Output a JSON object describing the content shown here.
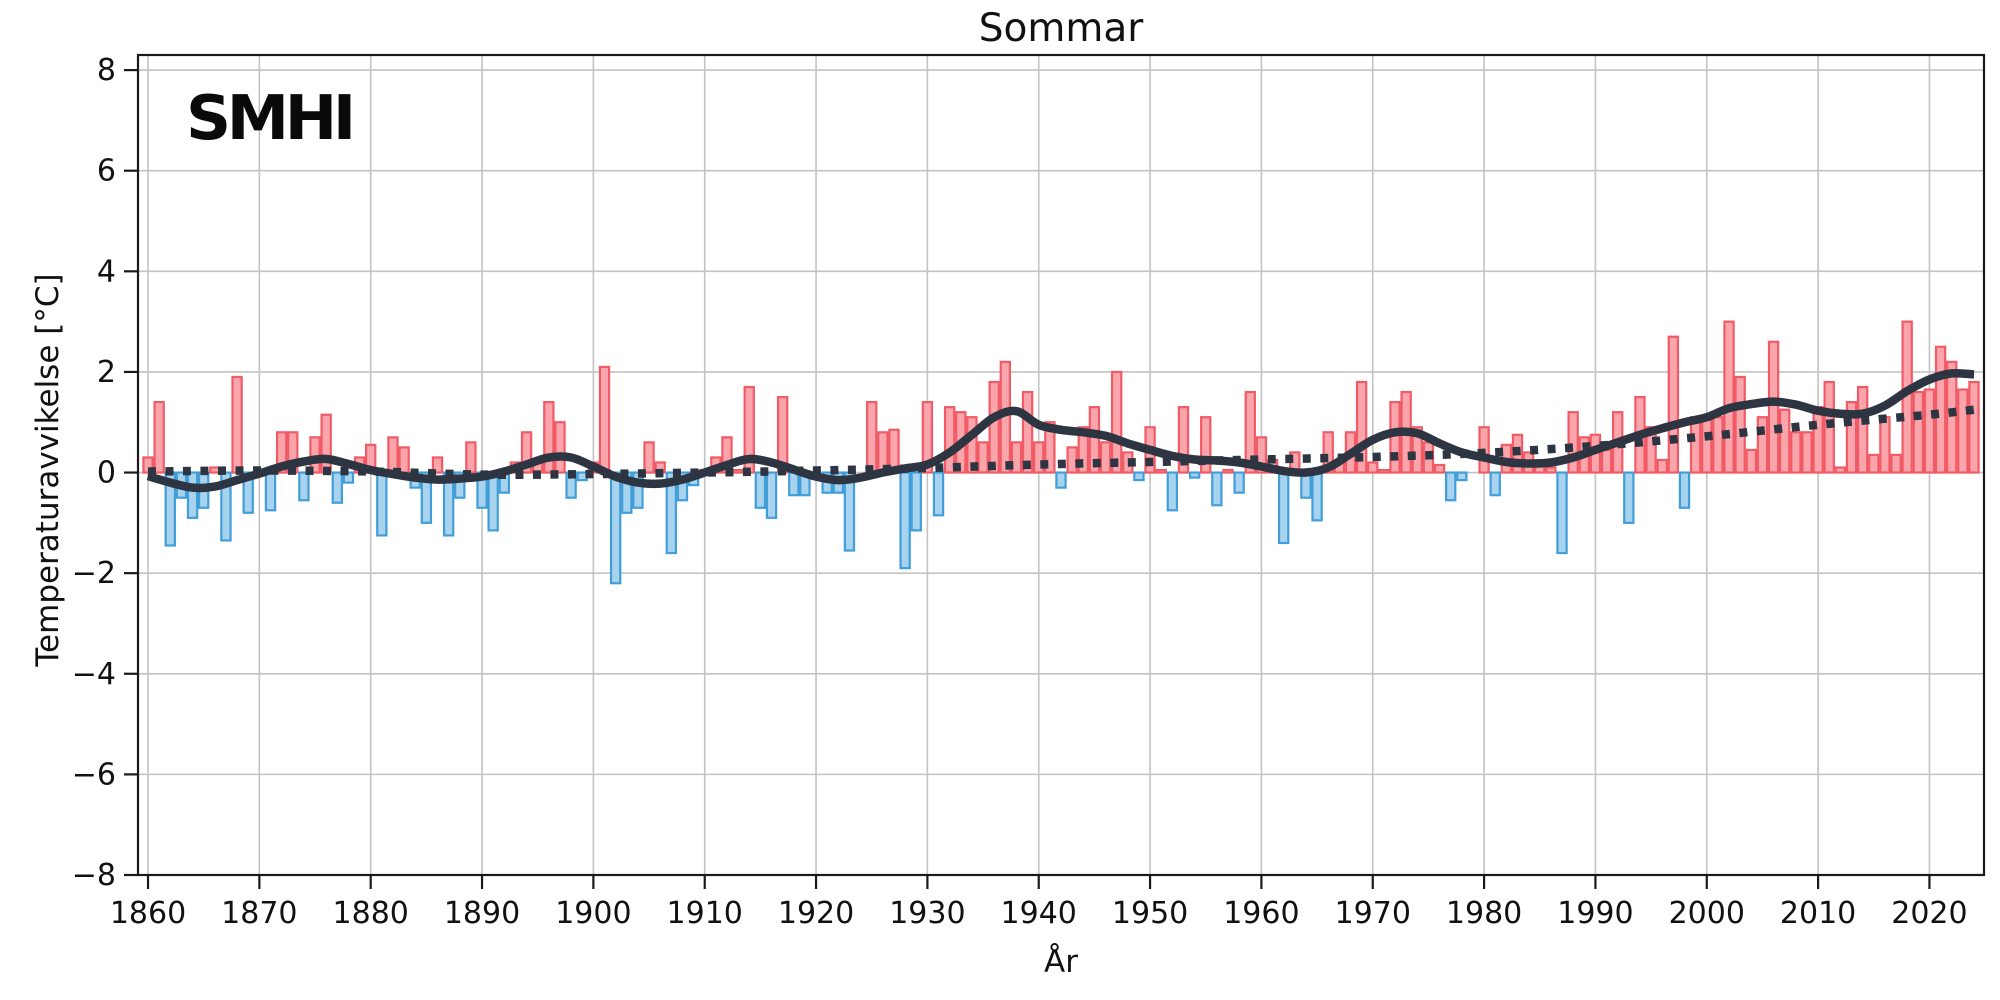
{
  "logo": "SMHI",
  "chart_data": {
    "type": "bar",
    "title": "Sommar",
    "xlabel": "År",
    "ylabel": "Temperaturavvikelse [°C]",
    "legend_position": "none",
    "grid": true,
    "xlim": [
      1859.1,
      2024.9
    ],
    "ylim": [
      -8,
      8.3
    ],
    "x_ticks": [
      1860,
      1870,
      1880,
      1890,
      1900,
      1910,
      1920,
      1930,
      1940,
      1950,
      1960,
      1970,
      1980,
      1990,
      2000,
      2010,
      2020
    ],
    "y_ticks": [
      -8,
      -6,
      -4,
      -2,
      0,
      2,
      4,
      6,
      8
    ],
    "categories_label": "year",
    "years": [
      1860,
      1861,
      1862,
      1863,
      1864,
      1865,
      1866,
      1867,
      1868,
      1869,
      1870,
      1871,
      1872,
      1873,
      1874,
      1875,
      1876,
      1877,
      1878,
      1879,
      1880,
      1881,
      1882,
      1883,
      1884,
      1885,
      1886,
      1887,
      1888,
      1889,
      1890,
      1891,
      1892,
      1893,
      1894,
      1895,
      1896,
      1897,
      1898,
      1899,
      1900,
      1901,
      1902,
      1903,
      1904,
      1905,
      1906,
      1907,
      1908,
      1909,
      1910,
      1911,
      1912,
      1913,
      1914,
      1915,
      1916,
      1917,
      1918,
      1919,
      1920,
      1921,
      1922,
      1923,
      1924,
      1925,
      1926,
      1927,
      1928,
      1929,
      1930,
      1931,
      1932,
      1933,
      1934,
      1935,
      1936,
      1937,
      1938,
      1939,
      1940,
      1941,
      1942,
      1943,
      1944,
      1945,
      1946,
      1947,
      1948,
      1949,
      1950,
      1951,
      1952,
      1953,
      1954,
      1955,
      1956,
      1957,
      1958,
      1959,
      1960,
      1961,
      1962,
      1963,
      1964,
      1965,
      1966,
      1967,
      1968,
      1969,
      1970,
      1971,
      1972,
      1973,
      1974,
      1975,
      1976,
      1977,
      1978,
      1979,
      1980,
      1981,
      1982,
      1983,
      1984,
      1985,
      1986,
      1987,
      1988,
      1989,
      1990,
      1991,
      1992,
      1993,
      1994,
      1995,
      1996,
      1997,
      1998,
      1999,
      2000,
      2001,
      2002,
      2003,
      2004,
      2005,
      2006,
      2007,
      2008,
      2009,
      2010,
      2011,
      2012,
      2013,
      2014,
      2015,
      2016,
      2017,
      2018,
      2019,
      2020,
      2021,
      2022,
      2023,
      2024
    ],
    "values": [
      0.3,
      1.4,
      -1.45,
      -0.5,
      -0.9,
      -0.7,
      0.1,
      -1.35,
      1.9,
      -0.8,
      0.0,
      -0.75,
      0.8,
      0.8,
      -0.55,
      0.7,
      1.15,
      -0.6,
      -0.2,
      0.3,
      0.55,
      -1.25,
      0.7,
      0.5,
      -0.3,
      -1.0,
      0.3,
      -1.25,
      -0.5,
      0.6,
      -0.7,
      -1.15,
      -0.4,
      0.2,
      0.8,
      0.2,
      1.4,
      1.0,
      -0.5,
      -0.15,
      0.2,
      2.1,
      -2.2,
      -0.8,
      -0.7,
      0.6,
      0.2,
      -1.6,
      -0.55,
      -0.25,
      0.05,
      0.3,
      0.7,
      0.05,
      1.7,
      -0.7,
      -0.9,
      1.5,
      -0.45,
      -0.45,
      0.0,
      -0.4,
      -0.4,
      -1.55,
      0.0,
      1.4,
      0.8,
      0.85,
      -1.9,
      -1.15,
      1.4,
      -0.85,
      1.3,
      1.2,
      1.1,
      0.6,
      1.8,
      2.2,
      0.6,
      1.6,
      0.6,
      1.0,
      -0.3,
      0.5,
      0.9,
      1.3,
      0.6,
      2.0,
      0.4,
      -0.15,
      0.9,
      0.05,
      -0.75,
      1.3,
      -0.1,
      1.1,
      -0.65,
      0.05,
      -0.4,
      1.6,
      0.7,
      0.25,
      -1.4,
      0.4,
      -0.5,
      -0.95,
      0.8,
      0.2,
      0.8,
      1.8,
      0.2,
      0.05,
      1.4,
      1.6,
      0.9,
      0.6,
      0.15,
      -0.55,
      -0.15,
      0.0,
      0.9,
      -0.45,
      0.55,
      0.75,
      0.4,
      0.15,
      0.1,
      -1.6,
      1.2,
      0.7,
      0.75,
      0.45,
      1.2,
      -1.0,
      1.5,
      0.9,
      0.25,
      2.7,
      -0.7,
      1.1,
      1.05,
      1.1,
      3.0,
      1.9,
      0.45,
      1.1,
      2.6,
      1.25,
      0.8,
      0.8,
      1.3,
      1.8,
      0.1,
      1.4,
      1.7,
      0.35,
      1.1,
      0.35,
      3.0,
      1.6,
      1.65,
      2.5,
      2.2,
      1.65,
      1.8
    ],
    "series": [
      {
        "name": "smoothed",
        "style": "solid",
        "points": [
          [
            1860,
            -0.07
          ],
          [
            1862,
            -0.2
          ],
          [
            1864,
            -0.3
          ],
          [
            1866,
            -0.28
          ],
          [
            1868,
            -0.15
          ],
          [
            1870,
            -0.02
          ],
          [
            1872,
            0.12
          ],
          [
            1874,
            0.22
          ],
          [
            1876,
            0.27
          ],
          [
            1878,
            0.17
          ],
          [
            1880,
            0.05
          ],
          [
            1882,
            -0.03
          ],
          [
            1884,
            -0.1
          ],
          [
            1886,
            -0.14
          ],
          [
            1888,
            -0.12
          ],
          [
            1890,
            -0.08
          ],
          [
            1892,
            0.02
          ],
          [
            1894,
            0.16
          ],
          [
            1896,
            0.3
          ],
          [
            1898,
            0.3
          ],
          [
            1900,
            0.12
          ],
          [
            1902,
            -0.08
          ],
          [
            1904,
            -0.2
          ],
          [
            1906,
            -0.22
          ],
          [
            1908,
            -0.14
          ],
          [
            1910,
            0.0
          ],
          [
            1912,
            0.15
          ],
          [
            1914,
            0.27
          ],
          [
            1916,
            0.2
          ],
          [
            1918,
            0.06
          ],
          [
            1920,
            -0.08
          ],
          [
            1922,
            -0.15
          ],
          [
            1924,
            -0.1
          ],
          [
            1926,
            0.0
          ],
          [
            1928,
            0.08
          ],
          [
            1930,
            0.16
          ],
          [
            1932,
            0.4
          ],
          [
            1934,
            0.75
          ],
          [
            1936,
            1.1
          ],
          [
            1938,
            1.22
          ],
          [
            1940,
            0.95
          ],
          [
            1942,
            0.85
          ],
          [
            1944,
            0.8
          ],
          [
            1946,
            0.73
          ],
          [
            1948,
            0.58
          ],
          [
            1950,
            0.45
          ],
          [
            1952,
            0.33
          ],
          [
            1954,
            0.26
          ],
          [
            1956,
            0.24
          ],
          [
            1958,
            0.2
          ],
          [
            1960,
            0.12
          ],
          [
            1962,
            0.03
          ],
          [
            1964,
            0.0
          ],
          [
            1966,
            0.1
          ],
          [
            1968,
            0.37
          ],
          [
            1970,
            0.65
          ],
          [
            1972,
            0.8
          ],
          [
            1974,
            0.78
          ],
          [
            1976,
            0.58
          ],
          [
            1978,
            0.4
          ],
          [
            1980,
            0.3
          ],
          [
            1982,
            0.21
          ],
          [
            1984,
            0.18
          ],
          [
            1986,
            0.2
          ],
          [
            1988,
            0.3
          ],
          [
            1990,
            0.45
          ],
          [
            1992,
            0.6
          ],
          [
            1994,
            0.75
          ],
          [
            1996,
            0.88
          ],
          [
            1998,
            1.0
          ],
          [
            2000,
            1.1
          ],
          [
            2002,
            1.28
          ],
          [
            2004,
            1.36
          ],
          [
            2006,
            1.41
          ],
          [
            2008,
            1.35
          ],
          [
            2010,
            1.23
          ],
          [
            2012,
            1.17
          ],
          [
            2014,
            1.17
          ],
          [
            2016,
            1.33
          ],
          [
            2018,
            1.62
          ],
          [
            2020,
            1.85
          ],
          [
            2022,
            1.97
          ],
          [
            2024,
            1.95
          ]
        ]
      },
      {
        "name": "trend",
        "style": "dotted",
        "points": [
          [
            1860,
            0.02
          ],
          [
            1870,
            0.04
          ],
          [
            1880,
            0.02
          ],
          [
            1890,
            -0.04
          ],
          [
            1900,
            -0.03
          ],
          [
            1910,
            0.0
          ],
          [
            1920,
            0.04
          ],
          [
            1930,
            0.09
          ],
          [
            1940,
            0.16
          ],
          [
            1950,
            0.21
          ],
          [
            1960,
            0.26
          ],
          [
            1970,
            0.31
          ],
          [
            1980,
            0.39
          ],
          [
            1990,
            0.53
          ],
          [
            2000,
            0.72
          ],
          [
            2010,
            0.95
          ],
          [
            2020,
            1.15
          ],
          [
            2024,
            1.25
          ]
        ]
      }
    ],
    "colors": {
      "bar_positive_fill": "#f9a5ab",
      "bar_positive_edge": "#f15b66",
      "bar_negative_fill": "#a8d3ef",
      "bar_negative_edge": "#419ed9",
      "smoothed_line": "#2d3442",
      "trend_line": "#2d3442",
      "grid": "#c3c3c3",
      "axis": "#1a1a1a",
      "text": "#111111",
      "background": "#ffffff"
    }
  }
}
